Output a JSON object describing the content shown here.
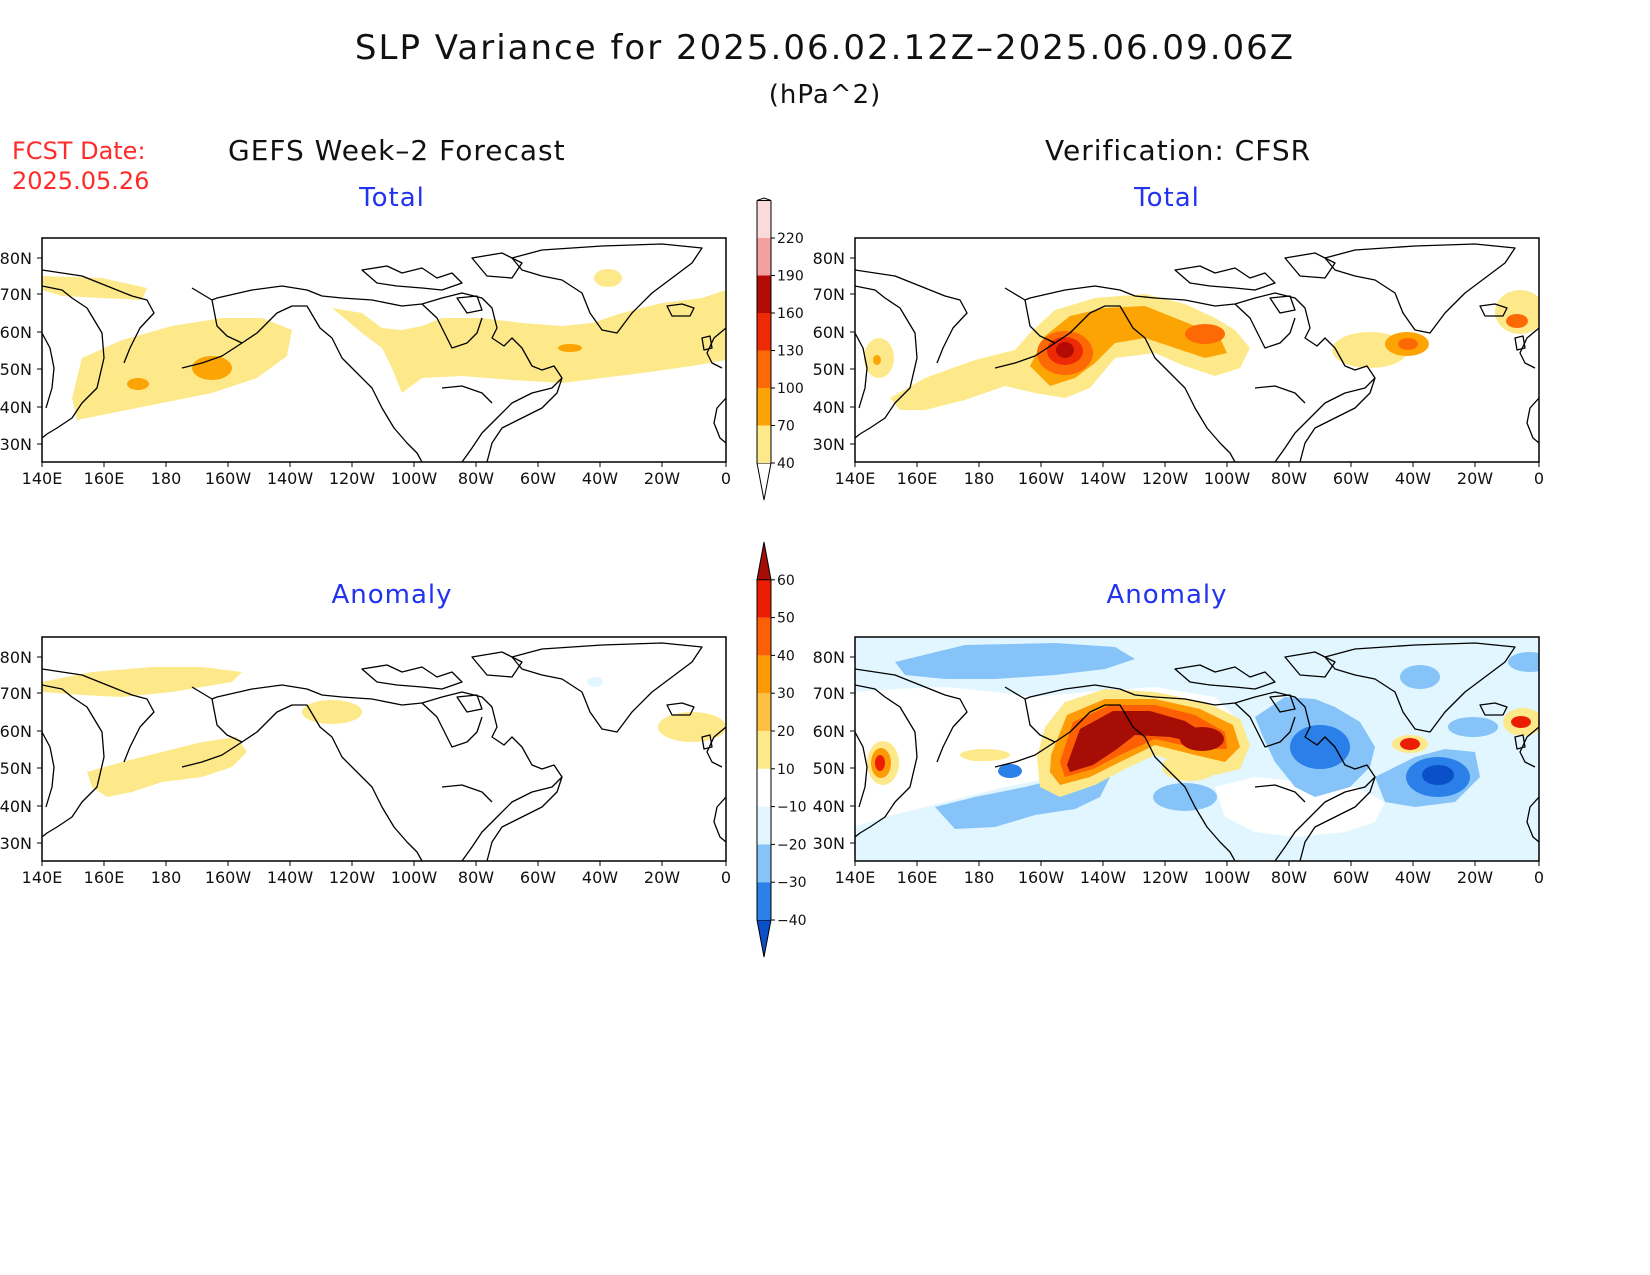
{
  "title": "SLP Variance for 2025.06.02.12Z–2025.06.09.06Z",
  "units": "(hPa^2)",
  "fcst_label": "FCST Date:",
  "fcst_date": "2025.05.26",
  "left_heading": "GEFS Week–2 Forecast",
  "right_heading": "Verification: CFSR",
  "total_label": "Total",
  "anomaly_label": "Anomaly",
  "lat_labels": [
    "80N",
    "70N",
    "60N",
    "50N",
    "40N",
    "30N"
  ],
  "lon_labels": [
    "140E",
    "160E",
    "180",
    "160W",
    "140W",
    "120W",
    "100W",
    "80W",
    "60W",
    "40W",
    "20W",
    "0"
  ],
  "colorbar_total": {
    "levels": [
      "40",
      "70",
      "100",
      "130",
      "160",
      "190",
      "220"
    ],
    "colors": [
      "#fde98a",
      "#fda405",
      "#fd6a05",
      "#ee2a05",
      "#b30a05",
      "#f4a0a0",
      "#fadada",
      "#fff2f2"
    ]
  },
  "colorbar_anomaly": {
    "levels": [
      "-40",
      "-30",
      "-20",
      "-10",
      "10",
      "20",
      "30",
      "40",
      "50",
      "60"
    ],
    "colors": [
      "#0a50c8",
      "#2a7fe8",
      "#86c3f8",
      "#e2f6ff",
      "#ffffff",
      "#fde98a",
      "#fdc042",
      "#fd9a05",
      "#fd5f05",
      "#ec1d05",
      "#a60d05"
    ]
  },
  "colors": {
    "title_red": "#ff2a2a",
    "label_blue": "#2233ee"
  }
}
